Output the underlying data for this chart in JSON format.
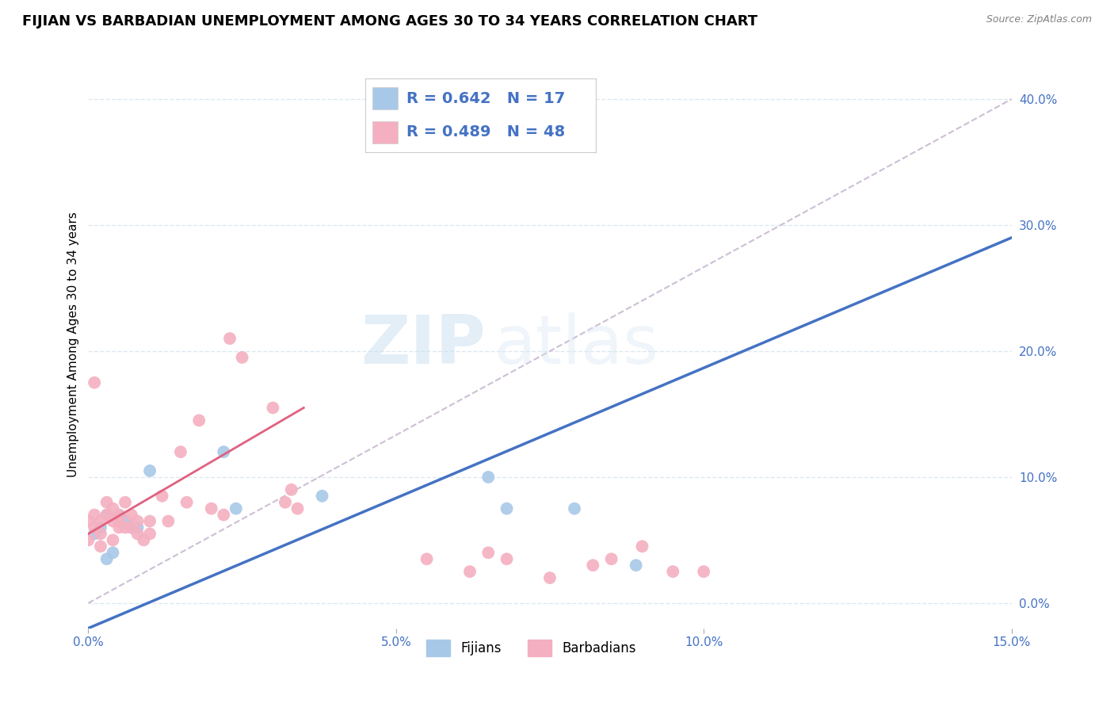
{
  "title": "FIJIAN VS BARBADIAN UNEMPLOYMENT AMONG AGES 30 TO 34 YEARS CORRELATION CHART",
  "source": "Source: ZipAtlas.com",
  "ylabel": "Unemployment Among Ages 30 to 34 years",
  "xlim": [
    0.0,
    0.15
  ],
  "ylim": [
    -0.02,
    0.43
  ],
  "xticks": [
    0.0,
    0.05,
    0.1,
    0.15
  ],
  "xtick_labels": [
    "0.0%",
    "5.0%",
    "10.0%",
    "15.0%"
  ],
  "yticks": [
    0.0,
    0.1,
    0.2,
    0.3,
    0.4
  ],
  "ytick_labels": [
    "0.0%",
    "10.0%",
    "20.0%",
    "30.0%",
    "40.0%"
  ],
  "fijian_color": "#a8c8e8",
  "barbadian_color": "#f4b0c0",
  "fijian_line_color": "#4472c4",
  "barbadian_line_color": "#e06080",
  "ref_line_color": "#c8b8d0",
  "legend_R_fijian": "R = 0.642",
  "legend_N_fijian": "N = 17",
  "legend_R_barbadian": "R = 0.489",
  "legend_N_barbadian": "N = 48",
  "watermark_zip": "ZIP",
  "watermark_atlas": "atlas",
  "fijian_x": [
    0.001,
    0.002,
    0.003,
    0.003,
    0.004,
    0.005,
    0.006,
    0.007,
    0.008,
    0.01,
    0.022,
    0.024,
    0.038,
    0.065,
    0.068,
    0.079,
    0.089
  ],
  "fijian_y": [
    0.055,
    0.06,
    0.035,
    0.07,
    0.04,
    0.07,
    0.065,
    0.06,
    0.06,
    0.105,
    0.12,
    0.075,
    0.085,
    0.1,
    0.075,
    0.075,
    0.03
  ],
  "barbadian_x": [
    0.0,
    0.0,
    0.001,
    0.001,
    0.001,
    0.002,
    0.002,
    0.002,
    0.003,
    0.003,
    0.004,
    0.004,
    0.004,
    0.005,
    0.005,
    0.005,
    0.006,
    0.006,
    0.007,
    0.007,
    0.008,
    0.008,
    0.009,
    0.01,
    0.01,
    0.012,
    0.013,
    0.015,
    0.016,
    0.018,
    0.02,
    0.022,
    0.023,
    0.025,
    0.03,
    0.032,
    0.033,
    0.034,
    0.055,
    0.062,
    0.065,
    0.068,
    0.075,
    0.082,
    0.085,
    0.09,
    0.095,
    0.1
  ],
  "barbadian_y": [
    0.05,
    0.065,
    0.06,
    0.07,
    0.175,
    0.045,
    0.055,
    0.065,
    0.07,
    0.08,
    0.05,
    0.065,
    0.075,
    0.06,
    0.065,
    0.07,
    0.06,
    0.08,
    0.06,
    0.07,
    0.065,
    0.055,
    0.05,
    0.055,
    0.065,
    0.085,
    0.065,
    0.12,
    0.08,
    0.145,
    0.075,
    0.07,
    0.21,
    0.195,
    0.155,
    0.08,
    0.09,
    0.075,
    0.035,
    0.025,
    0.04,
    0.035,
    0.02,
    0.03,
    0.035,
    0.045,
    0.025,
    0.025
  ],
  "fijian_line_x0": 0.0,
  "fijian_line_y0": -0.02,
  "fijian_line_x1": 0.15,
  "fijian_line_y1": 0.29,
  "barbadian_line_x0": 0.0,
  "barbadian_line_y0": 0.055,
  "barbadian_line_x1": 0.035,
  "barbadian_line_y1": 0.155,
  "ref_line_x0": 0.0,
  "ref_line_y0": 0.0,
  "ref_line_x1": 0.15,
  "ref_line_y1": 0.4,
  "background_color": "#ffffff",
  "grid_color": "#dde8f0",
  "title_fontsize": 13,
  "axis_label_fontsize": 11,
  "tick_fontsize": 11,
  "legend_fontsize": 14,
  "tick_color": "#4472c4"
}
